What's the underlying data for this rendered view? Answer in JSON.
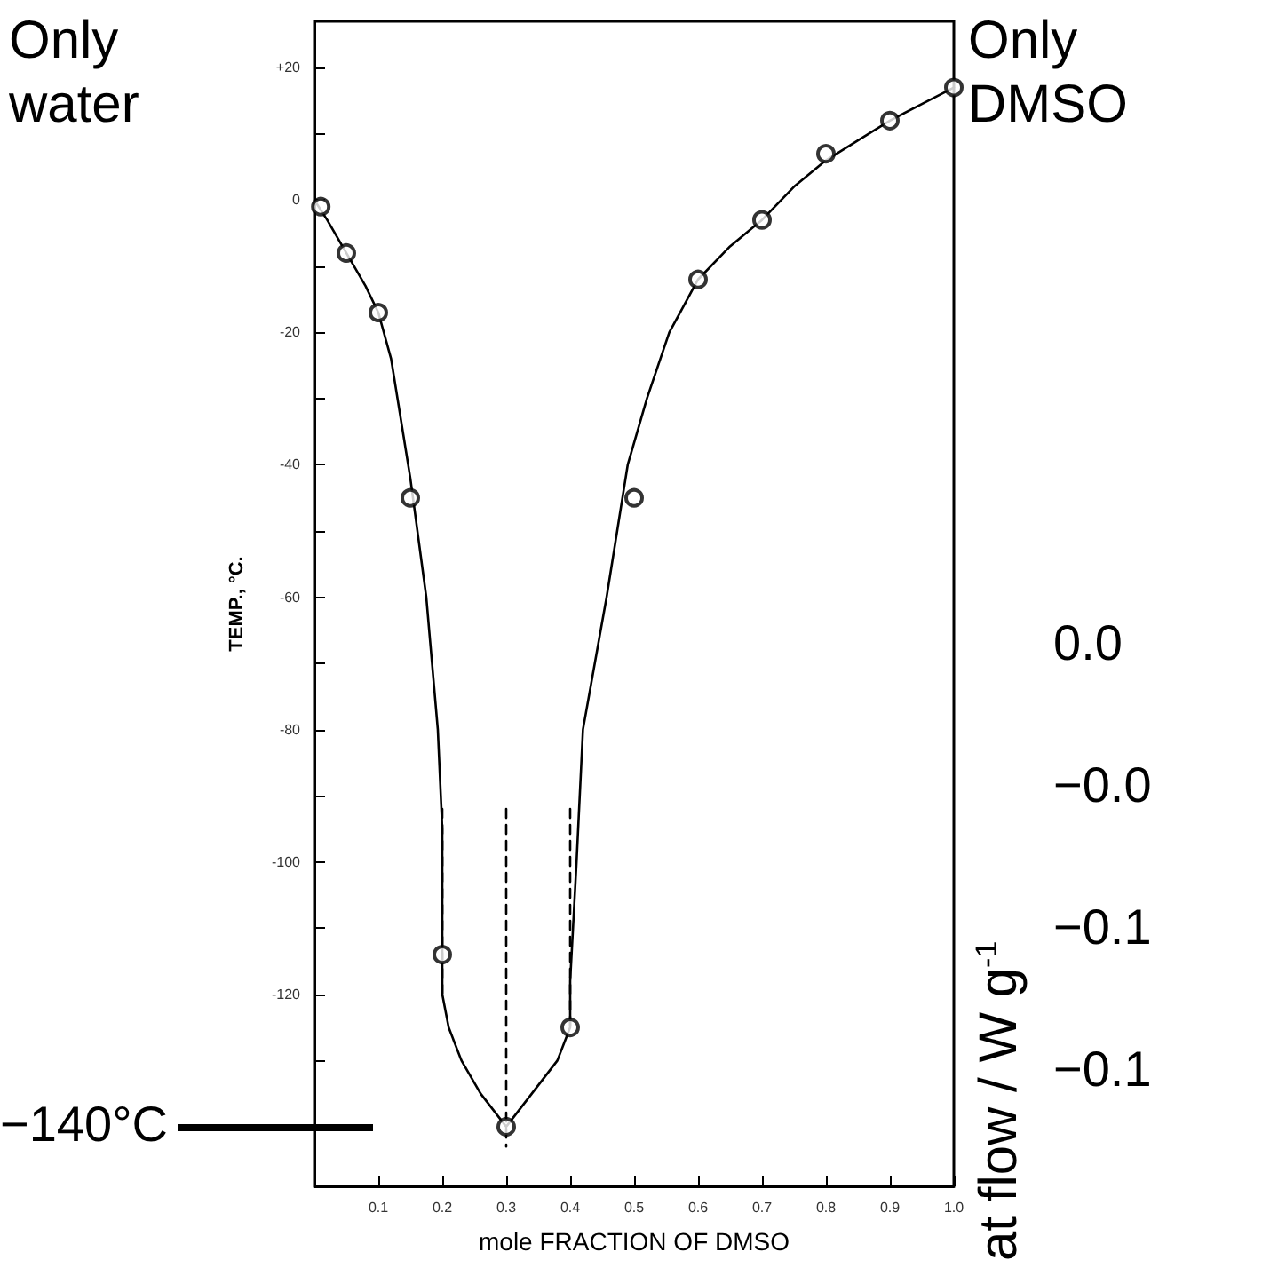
{
  "chart_data": [
    {
      "type": "line",
      "xlabel": "mole FRACTION OF DMSO",
      "ylabel": "TEMP., °C.",
      "xlim": [
        0,
        1
      ],
      "ylim": [
        -149,
        27
      ],
      "xticks": [
        0.1,
        0.2,
        0.3,
        0.4,
        0.5,
        0.6,
        0.7,
        0.8,
        0.9,
        {
          "value": 1,
          "label": "1.0"
        }
      ],
      "yticks": [
        {
          "value": 20,
          "label": "+20"
        },
        {
          "value": 10,
          "label": null
        },
        0,
        {
          "value": -10,
          "label": null
        },
        -20,
        {
          "value": -30,
          "label": null
        },
        -40,
        {
          "value": -50,
          "label": null
        },
        -60,
        {
          "value": -70,
          "label": null
        },
        -80,
        {
          "value": -90,
          "label": null
        },
        -100,
        {
          "value": -110,
          "label": null
        },
        -120,
        {
          "value": -130,
          "label": null
        },
        {
          "value": -140,
          "label": null
        }
      ],
      "grid": false,
      "annotations": [
        "Only water",
        "Only DMSO",
        "−140°C"
      ],
      "series": [
        {
          "type": "line",
          "color": "#000000",
          "marker": "none",
          "line_style": "solid",
          "x": [
            0,
            0.02,
            0.05,
            0.08,
            0.1,
            0.12,
            0.15,
            0.175,
            0.193,
            0.2,
            0.2,
            0.21,
            0.23,
            0.26,
            0.3,
            0.34,
            0.38,
            0.4,
            0.4,
            0.41,
            0.42,
            0.457,
            0.49,
            0.52,
            0.555,
            0.6,
            0.65,
            0.7,
            0.75,
            0.8,
            0.85,
            0.9,
            0.95,
            1
          ],
          "values": [
            0,
            -3,
            -8,
            -13,
            -17,
            -24,
            -42,
            -60,
            -80,
            -95,
            -120,
            -125,
            -130,
            -135,
            -140,
            -135,
            -130,
            -125,
            -118,
            -100,
            -80,
            -60,
            -40,
            -30,
            -20,
            -12,
            -7,
            -3,
            2,
            6,
            9,
            12,
            14.5,
            17
          ]
        },
        {
          "type": "line",
          "color": "#000000",
          "marker": "none",
          "line_style": "dashed",
          "x": [
            0.2,
            0.2
          ],
          "values": [
            -92,
            -120
          ]
        },
        {
          "type": "line",
          "color": "#000000",
          "marker": "none",
          "line_style": "dashed",
          "x": [
            0.3,
            0.3
          ],
          "values": [
            -92,
            -143
          ]
        },
        {
          "type": "line",
          "color": "#000000",
          "marker": "none",
          "line_style": "dashed",
          "x": [
            0.4,
            0.4
          ],
          "values": [
            -92,
            -125
          ]
        },
        {
          "type": "scatter",
          "color": "#000000",
          "marker": "circle",
          "x": [
            0.01,
            0.05,
            0.1,
            0.15,
            0.2,
            0.3,
            0.4,
            0.5,
            0.6,
            0.7,
            0.8,
            0.9,
            1
          ],
          "values": [
            -1,
            -8,
            -17,
            -45,
            -114,
            -140,
            -125,
            -45,
            -12,
            -3,
            7,
            12,
            17
          ]
        }
      ]
    },
    {
      "type": "other",
      "ylabel": "at flow / W g$^{-1}$",
      "annotations": [
        "0.0",
        "−0.0",
        "−0.1",
        "−0.1"
      ]
    }
  ]
}
